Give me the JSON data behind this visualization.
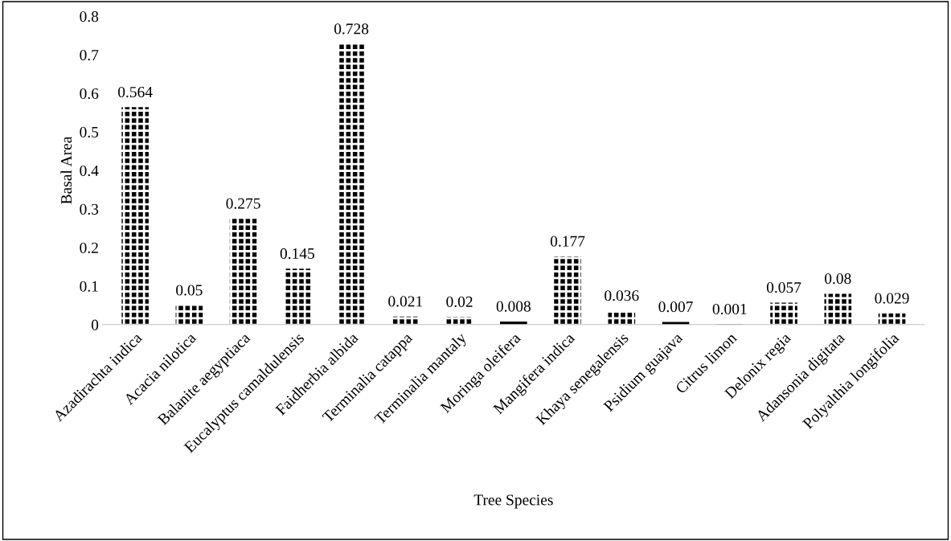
{
  "chart_data": {
    "type": "bar",
    "xlabel": "Tree Species",
    "ylabel": "Basal Area",
    "categories": [
      "Azadirachta indica",
      "Acacia nilotica",
      "Balanite aegyptiaca",
      "Eucalyptus camaldulensis",
      "Faidherbia albida",
      "Terminalia catappa",
      "Terminalia mantaly",
      "Moringa oleifera",
      "Mangifera indica",
      "Khaya senegalensis",
      "Psidium guajava",
      "Citrus limon",
      "Delonix regia",
      "Adansonia digitata",
      "Polyalthia longifolia"
    ],
    "values": [
      0.564,
      0.05,
      0.275,
      0.145,
      0.728,
      0.021,
      0.02,
      0.008,
      0.177,
      0.036,
      0.007,
      0.001,
      0.057,
      0.08,
      0.029
    ],
    "color": "#000000",
    "data_labels": true,
    "ylim": [
      0,
      0.8
    ],
    "yticks": [
      0,
      0.1,
      0.2,
      0.3,
      0.4,
      0.5,
      0.6,
      0.7,
      0.8
    ],
    "grid": false,
    "legend": false
  }
}
